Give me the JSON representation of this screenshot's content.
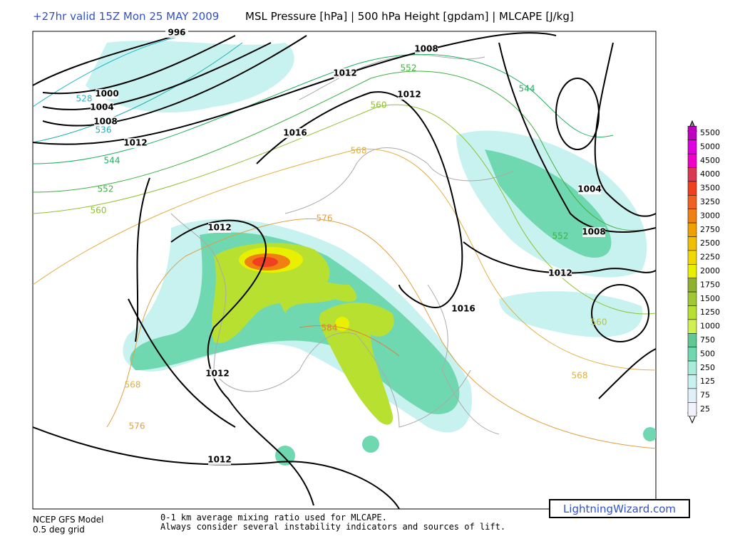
{
  "header": {
    "run": "+27hr valid 15Z Mon 25 MAY 2009",
    "fields": "MSL Pressure [hPa] | 500 hPa Height [gpdam] | MLCAPE [J/kg]"
  },
  "legend": {
    "items": [
      {
        "value": 5500,
        "color": "#c000c0"
      },
      {
        "value": 5000,
        "color": "#e000e0"
      },
      {
        "value": 4500,
        "color": "#f000c8"
      },
      {
        "value": 4000,
        "color": "#d83850"
      },
      {
        "value": 3500,
        "color": "#f04020"
      },
      {
        "value": 3250,
        "color": "#f06020"
      },
      {
        "value": 3000,
        "color": "#f08010"
      },
      {
        "value": 2750,
        "color": "#f0a000"
      },
      {
        "value": 2500,
        "color": "#f0c000"
      },
      {
        "value": 2250,
        "color": "#f0d800"
      },
      {
        "value": 2000,
        "color": "#e8f000"
      },
      {
        "value": 1750,
        "color": "#90b030"
      },
      {
        "value": 1500,
        "color": "#a0c830"
      },
      {
        "value": 1250,
        "color": "#b8e030"
      },
      {
        "value": 1000,
        "color": "#d0f050"
      },
      {
        "value": 750,
        "color": "#60c890"
      },
      {
        "value": 500,
        "color": "#70d8b0"
      },
      {
        "value": 250,
        "color": "#a8ecdc"
      },
      {
        "value": 125,
        "color": "#c8f2f0"
      },
      {
        "value": 75,
        "color": "#e0f0f8"
      },
      {
        "value": 25,
        "color": "#f2f2fa"
      }
    ]
  },
  "map": {
    "isobar_labels": [
      "996",
      "1000",
      "1004",
      "1008",
      "1012",
      "1008",
      "1012",
      "1012",
      "1016",
      "1004",
      "1008",
      "1012",
      "1016",
      "1012",
      "1012",
      "1012"
    ],
    "height_labels": [
      {
        "label": "528",
        "color": "#20b8c8"
      },
      {
        "label": "536",
        "color": "#20b0b0"
      },
      {
        "label": "544",
        "color": "#20b060"
      },
      {
        "label": "552",
        "color": "#40b040"
      },
      {
        "label": "560",
        "color": "#90c030"
      },
      {
        "label": "568",
        "color": "#e0b040"
      },
      {
        "label": "576",
        "color": "#e0a040"
      },
      {
        "label": "552",
        "color": "#40b040"
      },
      {
        "label": "560",
        "color": "#90c030"
      },
      {
        "label": "568",
        "color": "#e0b040"
      },
      {
        "label": "576",
        "color": "#e0a040"
      },
      {
        "label": "584",
        "color": "#e08040"
      },
      {
        "label": "544",
        "color": "#20b060"
      },
      {
        "label": "552",
        "color": "#40b040"
      },
      {
        "label": "560",
        "color": "#c0c040"
      },
      {
        "label": "568",
        "color": "#e0b040"
      }
    ]
  },
  "footer": {
    "model": "NCEP GFS Model",
    "grid": "0.5 deg grid",
    "note1": "0-1 km average mixing ratio used for MLCAPE.",
    "note2": "Always consider several instability indicators and sources of lift."
  },
  "logo": "LightningWizard.com"
}
